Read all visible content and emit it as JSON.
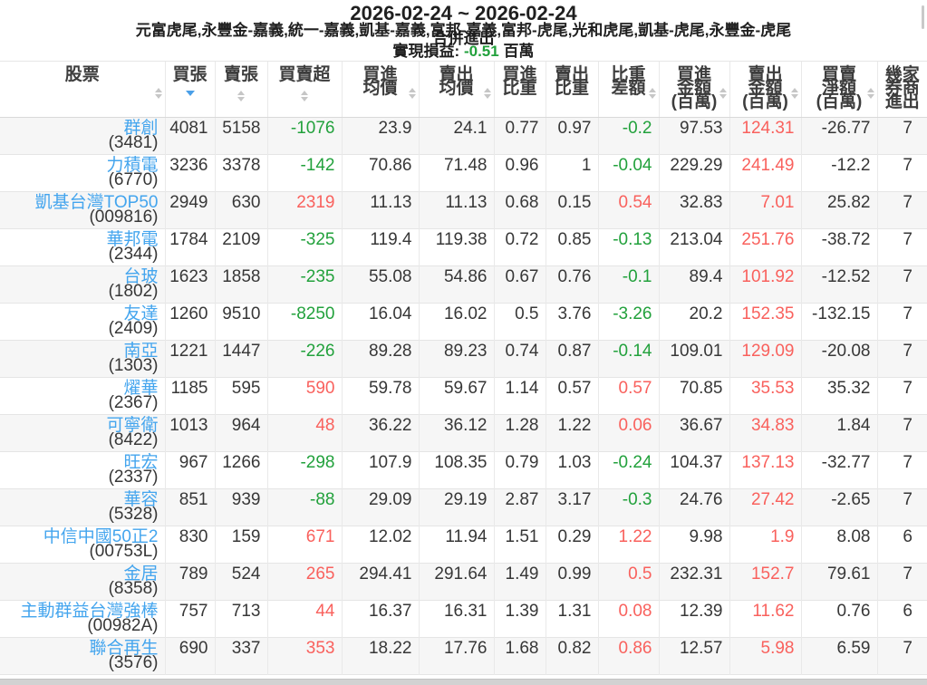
{
  "header": {
    "title": "2026-02-24 ~ 2026-02-24",
    "brokers": "元富虎尾,永豐金-嘉義,統一-嘉義,凱基-嘉義,富邦-嘉義,富邦-虎尾,光和虎尾,凱基-虎尾,永豐金-虎尾",
    "mode": "合併進出",
    "pnl_label": "實現損益:",
    "pnl_value": "-0.51",
    "pnl_unit": "百萬"
  },
  "colors": {
    "link_blue": "#44a5ee",
    "gain_red": "#f9615d",
    "loss_green": "#22a13c",
    "active_sort_blue": "#4a9fe8",
    "stripe_gray": "#f6f6f6"
  },
  "table": {
    "columns": [
      {
        "key": "stock",
        "lines": [
          "股票"
        ],
        "width": 182,
        "sort": "both",
        "sort_pos": "right",
        "color": "link"
      },
      {
        "key": "buy_lots",
        "lines": [
          "買張"
        ],
        "width": 55,
        "sort": "desc",
        "sort_pos": "below",
        "color": "plain"
      },
      {
        "key": "sell_lots",
        "lines": [
          "賣張"
        ],
        "width": 58,
        "sort": "both",
        "sort_pos": "below",
        "color": "plain"
      },
      {
        "key": "net_lots",
        "lines": [
          "買賣超"
        ],
        "width": 82,
        "sort": "both",
        "sort_pos": "below",
        "color": "sign"
      },
      {
        "key": "buy_avg",
        "lines": [
          "買進",
          "均價"
        ],
        "width": 85,
        "sort": "both",
        "sort_pos": "right",
        "color": "plain"
      },
      {
        "key": "sell_avg",
        "lines": [
          "賣出",
          "均價"
        ],
        "width": 83,
        "sort": "both",
        "sort_pos": "right",
        "color": "plain"
      },
      {
        "key": "buy_pct",
        "lines": [
          "買進",
          "比重"
        ],
        "width": 57,
        "sort": "none",
        "sort_pos": "none",
        "color": "plain"
      },
      {
        "key": "sell_pct",
        "lines": [
          "賣出",
          "比重"
        ],
        "width": 58,
        "sort": "none",
        "sort_pos": "none",
        "color": "plain"
      },
      {
        "key": "pct_diff",
        "lines": [
          "比重",
          "差額"
        ],
        "width": 67,
        "sort": "both",
        "sort_pos": "right",
        "color": "sign"
      },
      {
        "key": "buy_amt",
        "lines": [
          "買進",
          "金額",
          "(百萬)"
        ],
        "width": 78,
        "sort": "both",
        "sort_pos": "right",
        "color": "plain"
      },
      {
        "key": "sell_amt",
        "lines": [
          "賣出",
          "金額",
          "(百萬)"
        ],
        "width": 79,
        "sort": "both",
        "sort_pos": "right",
        "color": "red"
      },
      {
        "key": "net_amt",
        "lines": [
          "買賣",
          "淨額",
          "(百萬)"
        ],
        "width": 84,
        "sort": "both",
        "sort_pos": "right",
        "color": "plain"
      },
      {
        "key": "brokers_count",
        "lines": [
          "幾家",
          "券商",
          "進出"
        ],
        "width": 55,
        "sort": "none",
        "sort_pos": "none",
        "color": "plain"
      }
    ],
    "rows": [
      {
        "name": "群創",
        "code": "(3481)",
        "buy_lots": "4081",
        "sell_lots": "5158",
        "net_lots": "-1076",
        "buy_avg": "23.9",
        "sell_avg": "24.1",
        "buy_pct": "0.77",
        "sell_pct": "0.97",
        "pct_diff": "-0.2",
        "buy_amt": "97.53",
        "sell_amt": "124.31",
        "net_amt": "-26.77",
        "brokers_count": "7"
      },
      {
        "name": "力積電",
        "code": "(6770)",
        "buy_lots": "3236",
        "sell_lots": "3378",
        "net_lots": "-142",
        "buy_avg": "70.86",
        "sell_avg": "71.48",
        "buy_pct": "0.96",
        "sell_pct": "1",
        "pct_diff": "-0.04",
        "buy_amt": "229.29",
        "sell_amt": "241.49",
        "net_amt": "-12.2",
        "brokers_count": "7"
      },
      {
        "name": "凱基台灣TOP50",
        "code": "(009816)",
        "buy_lots": "2949",
        "sell_lots": "630",
        "net_lots": "2319",
        "buy_avg": "11.13",
        "sell_avg": "11.13",
        "buy_pct": "0.68",
        "sell_pct": "0.15",
        "pct_diff": "0.54",
        "buy_amt": "32.83",
        "sell_amt": "7.01",
        "net_amt": "25.82",
        "brokers_count": "7"
      },
      {
        "name": "華邦電",
        "code": "(2344)",
        "buy_lots": "1784",
        "sell_lots": "2109",
        "net_lots": "-325",
        "buy_avg": "119.4",
        "sell_avg": "119.38",
        "buy_pct": "0.72",
        "sell_pct": "0.85",
        "pct_diff": "-0.13",
        "buy_amt": "213.04",
        "sell_amt": "251.76",
        "net_amt": "-38.72",
        "brokers_count": "7"
      },
      {
        "name": "台玻",
        "code": "(1802)",
        "buy_lots": "1623",
        "sell_lots": "1858",
        "net_lots": "-235",
        "buy_avg": "55.08",
        "sell_avg": "54.86",
        "buy_pct": "0.67",
        "sell_pct": "0.76",
        "pct_diff": "-0.1",
        "buy_amt": "89.4",
        "sell_amt": "101.92",
        "net_amt": "-12.52",
        "brokers_count": "7"
      },
      {
        "name": "友達",
        "code": "(2409)",
        "buy_lots": "1260",
        "sell_lots": "9510",
        "net_lots": "-8250",
        "buy_avg": "16.04",
        "sell_avg": "16.02",
        "buy_pct": "0.5",
        "sell_pct": "3.76",
        "pct_diff": "-3.26",
        "buy_amt": "20.2",
        "sell_amt": "152.35",
        "net_amt": "-132.15",
        "brokers_count": "7"
      },
      {
        "name": "南亞",
        "code": "(1303)",
        "buy_lots": "1221",
        "sell_lots": "1447",
        "net_lots": "-226",
        "buy_avg": "89.28",
        "sell_avg": "89.23",
        "buy_pct": "0.74",
        "sell_pct": "0.87",
        "pct_diff": "-0.14",
        "buy_amt": "109.01",
        "sell_amt": "129.09",
        "net_amt": "-20.08",
        "brokers_count": "7"
      },
      {
        "name": "燿華",
        "code": "(2367)",
        "buy_lots": "1185",
        "sell_lots": "595",
        "net_lots": "590",
        "buy_avg": "59.78",
        "sell_avg": "59.67",
        "buy_pct": "1.14",
        "sell_pct": "0.57",
        "pct_diff": "0.57",
        "buy_amt": "70.85",
        "sell_amt": "35.53",
        "net_amt": "35.32",
        "brokers_count": "7"
      },
      {
        "name": "可寧衛",
        "code": "(8422)",
        "buy_lots": "1013",
        "sell_lots": "964",
        "net_lots": "48",
        "buy_avg": "36.22",
        "sell_avg": "36.12",
        "buy_pct": "1.28",
        "sell_pct": "1.22",
        "pct_diff": "0.06",
        "buy_amt": "36.67",
        "sell_amt": "34.83",
        "net_amt": "1.84",
        "brokers_count": "7"
      },
      {
        "name": "旺宏",
        "code": "(2337)",
        "buy_lots": "967",
        "sell_lots": "1266",
        "net_lots": "-298",
        "buy_avg": "107.9",
        "sell_avg": "108.35",
        "buy_pct": "0.79",
        "sell_pct": "1.03",
        "pct_diff": "-0.24",
        "buy_amt": "104.37",
        "sell_amt": "137.13",
        "net_amt": "-32.77",
        "brokers_count": "7"
      },
      {
        "name": "華容",
        "code": "(5328)",
        "buy_lots": "851",
        "sell_lots": "939",
        "net_lots": "-88",
        "buy_avg": "29.09",
        "sell_avg": "29.19",
        "buy_pct": "2.87",
        "sell_pct": "3.17",
        "pct_diff": "-0.3",
        "buy_amt": "24.76",
        "sell_amt": "27.42",
        "net_amt": "-2.65",
        "brokers_count": "7"
      },
      {
        "name": "中信中國50正2",
        "code": "(00753L)",
        "buy_lots": "830",
        "sell_lots": "159",
        "net_lots": "671",
        "buy_avg": "12.02",
        "sell_avg": "11.94",
        "buy_pct": "1.51",
        "sell_pct": "0.29",
        "pct_diff": "1.22",
        "buy_amt": "9.98",
        "sell_amt": "1.9",
        "net_amt": "8.08",
        "brokers_count": "6"
      },
      {
        "name": "金居",
        "code": "(8358)",
        "buy_lots": "789",
        "sell_lots": "524",
        "net_lots": "265",
        "buy_avg": "294.41",
        "sell_avg": "291.64",
        "buy_pct": "1.49",
        "sell_pct": "0.99",
        "pct_diff": "0.5",
        "buy_amt": "232.31",
        "sell_amt": "152.7",
        "net_amt": "79.61",
        "brokers_count": "7"
      },
      {
        "name": "主動群益台灣強棒",
        "code": "(00982A)",
        "buy_lots": "757",
        "sell_lots": "713",
        "net_lots": "44",
        "buy_avg": "16.37",
        "sell_avg": "16.31",
        "buy_pct": "1.39",
        "sell_pct": "1.31",
        "pct_diff": "0.08",
        "buy_amt": "12.39",
        "sell_amt": "11.62",
        "net_amt": "0.76",
        "brokers_count": "6"
      },
      {
        "name": "聯合再生",
        "code": "(3576)",
        "buy_lots": "690",
        "sell_lots": "337",
        "net_lots": "353",
        "buy_avg": "18.22",
        "sell_avg": "17.76",
        "buy_pct": "1.68",
        "sell_pct": "0.82",
        "pct_diff": "0.86",
        "buy_amt": "12.57",
        "sell_amt": "5.98",
        "net_amt": "6.59",
        "brokers_count": "7"
      }
    ]
  }
}
